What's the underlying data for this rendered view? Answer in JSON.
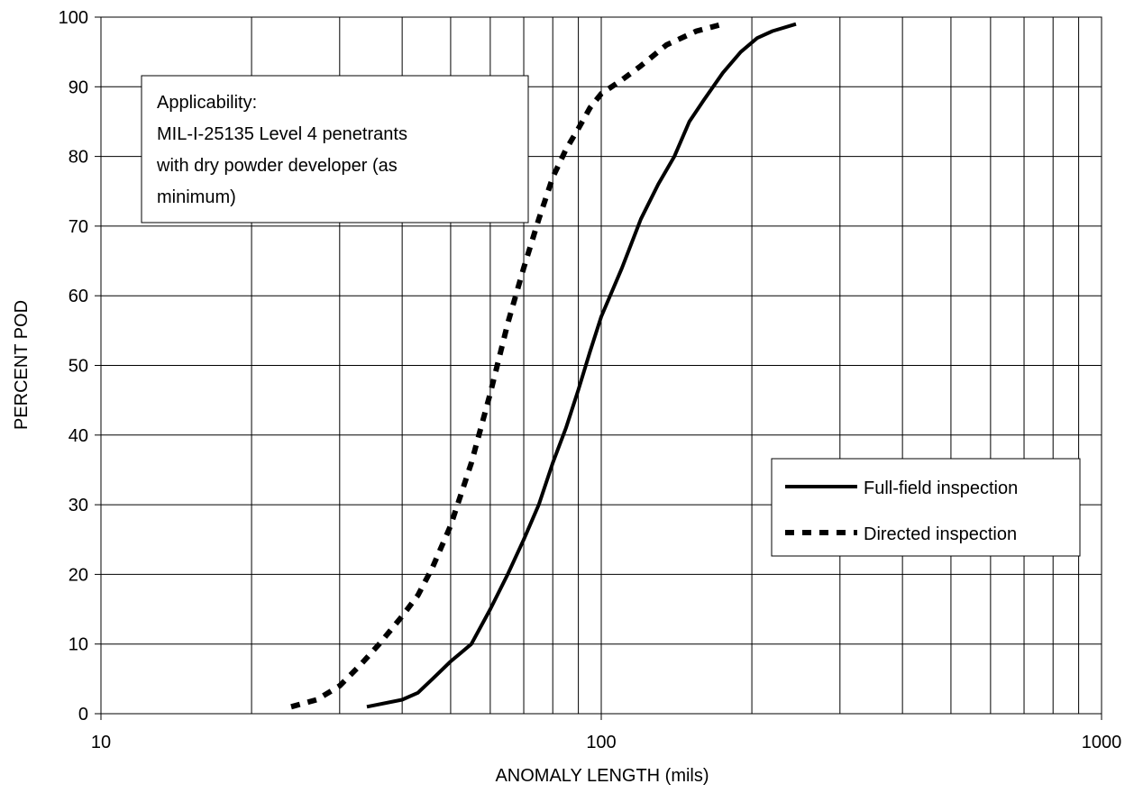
{
  "chart_data": {
    "type": "line",
    "xlabel": "ANOMALY LENGTH (mils)",
    "ylabel": "PERCENT POD",
    "xscale": "log",
    "xlim": [
      10,
      1000
    ],
    "ylim": [
      0,
      100
    ],
    "grid": true,
    "x_tick_labels": [
      "10",
      "100",
      "1000"
    ],
    "y_tick_labels": [
      "0",
      "10",
      "20",
      "30",
      "40",
      "50",
      "60",
      "70",
      "80",
      "90",
      "100"
    ],
    "annotation": {
      "lines": [
        "Applicability:",
        "MIL-I-25135 Level 4 penetrants",
        "with dry powder developer (as",
        "minimum)"
      ]
    },
    "legend_position": "right",
    "series": [
      {
        "name": "Full-field inspection",
        "style": "solid",
        "color": "#000000",
        "x": [
          34,
          40,
          43,
          46,
          50,
          55,
          60,
          65,
          70,
          75,
          80,
          85,
          90,
          95,
          100,
          110,
          120,
          130,
          140,
          150,
          160,
          175,
          190,
          205,
          220,
          245
        ],
        "y": [
          1,
          2,
          3,
          5,
          7.5,
          10,
          15,
          20,
          25,
          30,
          36,
          41,
          46.5,
          52,
          57,
          64,
          71,
          76,
          80,
          85,
          88,
          92,
          95,
          97,
          98,
          99
        ]
      },
      {
        "name": "Directed inspection",
        "style": "dashed",
        "color": "#000000",
        "x": [
          24,
          27,
          30,
          33,
          36,
          40,
          43,
          46,
          50,
          55,
          60,
          65,
          70,
          75,
          80,
          85,
          90,
          95,
          100,
          110,
          120,
          135,
          155,
          175
        ],
        "y": [
          1,
          2,
          4,
          7,
          10,
          14,
          17,
          21,
          27,
          36,
          46,
          56,
          64,
          71,
          77,
          81,
          84,
          87,
          89,
          91,
          93,
          96,
          98,
          99
        ]
      }
    ]
  }
}
